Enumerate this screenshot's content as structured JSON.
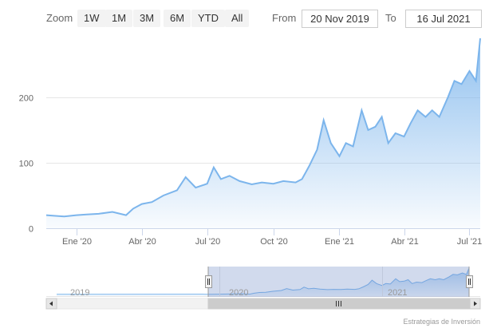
{
  "range_selector": {
    "zoom_label": "Zoom",
    "buttons": [
      "1W",
      "1M",
      "3M",
      "6M",
      "YTD",
      "All"
    ],
    "from_label": "From",
    "from_value": "20 Nov 2019",
    "to_label": "To",
    "to_value": "16 Jul 2021"
  },
  "chart_data": {
    "type": "area",
    "y_ticks": [
      "0",
      "100",
      "200"
    ],
    "ylim": [
      0,
      290
    ],
    "x_ticks": [
      "Ene '20",
      "Abr '20",
      "Jul '20",
      "Oct '20",
      "Ene '21",
      "Abr '21",
      "Jul '21"
    ],
    "series": [
      {
        "color": "#7cb5ec",
        "x": [
          "2019-11-20",
          "2019-12-01",
          "2019-12-15",
          "2020-01-01",
          "2020-01-15",
          "2020-02-01",
          "2020-02-20",
          "2020-03-10",
          "2020-03-20",
          "2020-04-01",
          "2020-04-15",
          "2020-05-01",
          "2020-05-20",
          "2020-06-01",
          "2020-06-15",
          "2020-07-01",
          "2020-07-10",
          "2020-07-20",
          "2020-08-01",
          "2020-08-15",
          "2020-09-01",
          "2020-09-15",
          "2020-10-01",
          "2020-10-15",
          "2020-11-01",
          "2020-11-10",
          "2020-11-20",
          "2020-12-01",
          "2020-12-10",
          "2020-12-20",
          "2021-01-01",
          "2021-01-10",
          "2021-01-20",
          "2021-02-01",
          "2021-02-10",
          "2021-02-20",
          "2021-03-01",
          "2021-03-10",
          "2021-03-20",
          "2021-04-01",
          "2021-04-10",
          "2021-04-20",
          "2021-05-01",
          "2021-05-10",
          "2021-05-20",
          "2021-06-01",
          "2021-06-10",
          "2021-06-20",
          "2021-07-01",
          "2021-07-10",
          "2021-07-16"
        ],
        "values": [
          20,
          19,
          18,
          20,
          21,
          22,
          25,
          20,
          30,
          37,
          40,
          50,
          58,
          78,
          62,
          68,
          93,
          75,
          80,
          72,
          67,
          70,
          68,
          72,
          70,
          75,
          95,
          120,
          165,
          130,
          110,
          130,
          125,
          180,
          150,
          155,
          170,
          130,
          145,
          140,
          160,
          180,
          170,
          180,
          170,
          200,
          225,
          220,
          240,
          225,
          290
        ]
      }
    ]
  },
  "navigator": {
    "year_labels": [
      "2019",
      "2020",
      "2021"
    ],
    "scrollbar_grip": "grip-icon",
    "left_arrow": "arrow-left-icon",
    "right_arrow": "arrow-right-icon"
  },
  "credits": "Estrategias de Inversión"
}
